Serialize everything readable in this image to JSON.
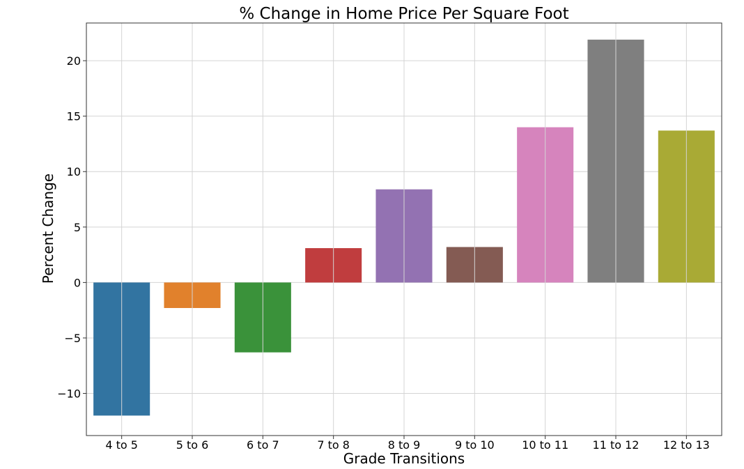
{
  "chart_data": {
    "type": "bar",
    "title": "% Change in Home Price Per Square Foot",
    "xlabel": "Grade Transitions",
    "ylabel": "Percent Change",
    "categories": [
      "4 to 5",
      "5 to 6",
      "6 to 7",
      "7 to 8",
      "8 to 9",
      "9 to 10",
      "10 to 11",
      "11 to 12",
      "12 to 13"
    ],
    "values": [
      -12.0,
      -2.3,
      -6.3,
      3.1,
      8.4,
      3.2,
      14.0,
      21.9,
      13.7
    ],
    "colors": [
      "#3274a1",
      "#e1812c",
      "#3a923a",
      "#c03d3e",
      "#9372b2",
      "#845b53",
      "#d684bd",
      "#7f7f7f",
      "#a9aa35"
    ],
    "ylim": [
      -13.8,
      23.4
    ],
    "yticks": [
      -10,
      -5,
      0,
      5,
      10,
      15,
      20
    ],
    "ytick_labels": [
      "−10",
      "−5",
      "0",
      "5",
      "10",
      "15",
      "20"
    ],
    "grid": true,
    "legend": "none"
  }
}
